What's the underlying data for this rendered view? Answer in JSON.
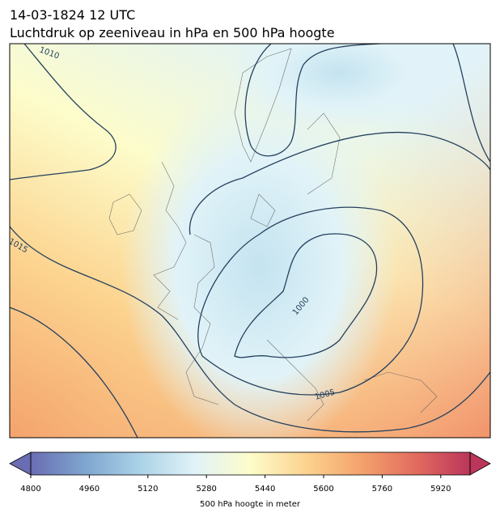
{
  "header": {
    "title": "14-03-1824 12 UTC",
    "subtitle": "Luchtdruk op zeeniveau in hPa en 500 hPa hoogte"
  },
  "isobars": [
    1010,
    1015,
    1000,
    1005
  ],
  "colorbar": {
    "label": "500 hPa hoogte in meter",
    "lim": [
      4800,
      6000
    ],
    "ticks": [
      4800,
      4960,
      5120,
      5280,
      5440,
      5600,
      5760,
      5920
    ],
    "extend": "both",
    "colors": [
      "#6a6db3",
      "#7fa6cf",
      "#abd3e7",
      "#e1f3f8",
      "#fdfcca",
      "#fcd490",
      "#f4a36d",
      "#e26c5f",
      "#bb365a"
    ]
  }
}
